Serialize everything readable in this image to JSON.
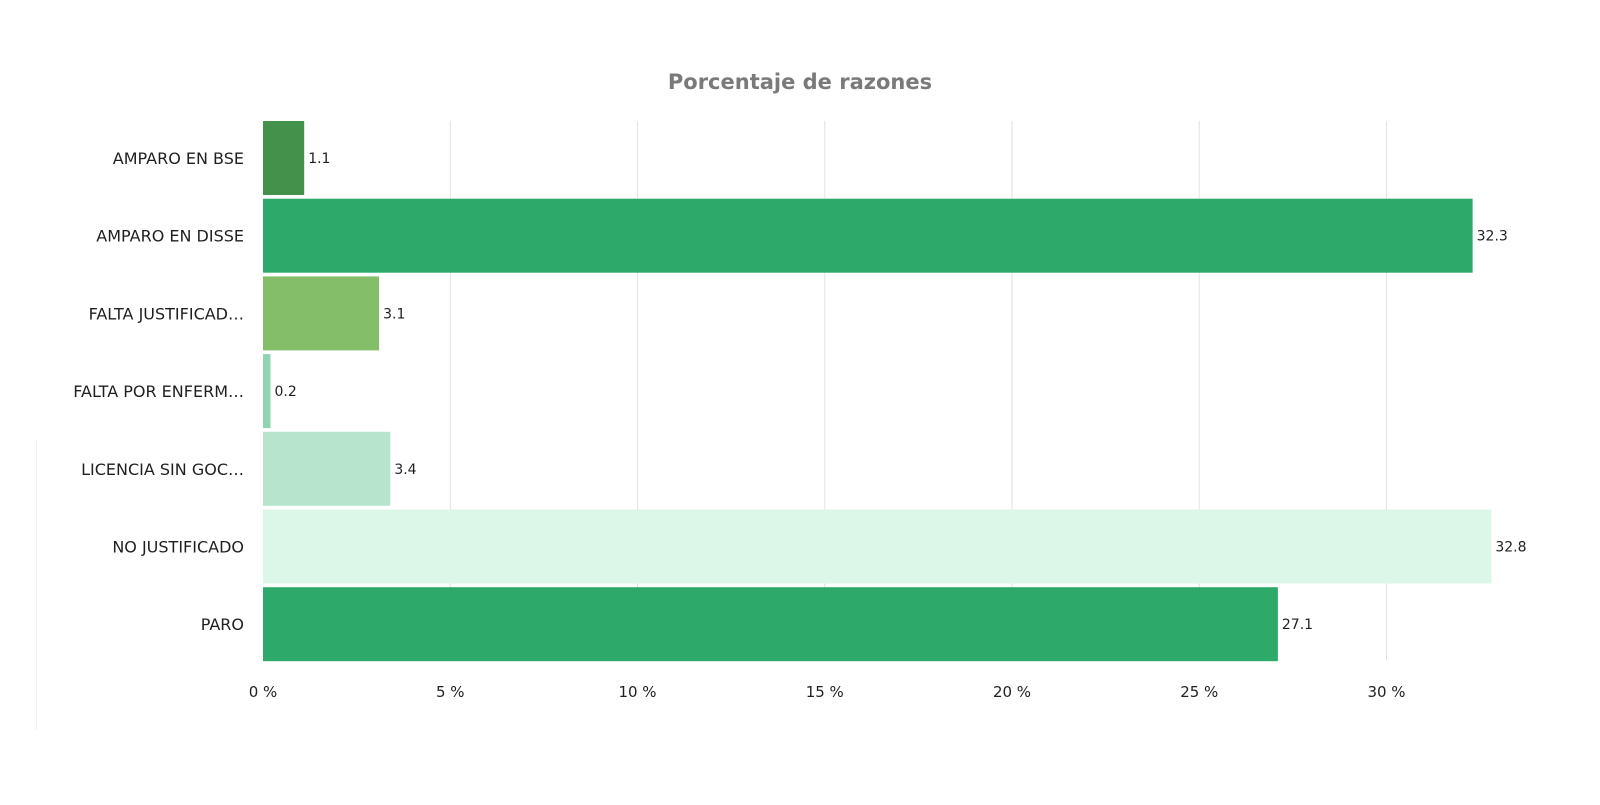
{
  "chart_data": {
    "type": "bar",
    "orientation": "horizontal",
    "title": "Porcentaje de razones",
    "categories": [
      "AMPARO EN BSE",
      "AMPARO EN DISSE",
      "FALTA JUSTIFICAD…",
      "FALTA POR ENFERM…",
      "LICENCIA SIN GOC…",
      "NO JUSTIFICADO",
      "PARO"
    ],
    "values": [
      1.1,
      32.3,
      3.1,
      0.2,
      3.4,
      32.8,
      27.1
    ],
    "data_labels": [
      "1.1",
      "32.3",
      "3.1",
      "0.2",
      "3.4",
      "32.8",
      "27.1"
    ],
    "colors": [
      "#43914a",
      "#2daa69",
      "#85be68",
      "#8fd5b1",
      "#b7e4cd",
      "#dcf7e8",
      "#2daa69"
    ],
    "x_ticks": [
      0,
      5,
      10,
      15,
      20,
      25,
      30
    ],
    "x_tick_labels": [
      "0 %",
      "5 %",
      "10 %",
      "15 %",
      "20 %",
      "25 %",
      "30 %"
    ],
    "xlim": [
      0,
      33.4
    ],
    "xlabel": "",
    "ylabel": "",
    "grid": true,
    "legend": "none",
    "title_color": "#7a7a7a",
    "label_color": "#1f1f1f",
    "grid_color": "#e2e2e2"
  }
}
